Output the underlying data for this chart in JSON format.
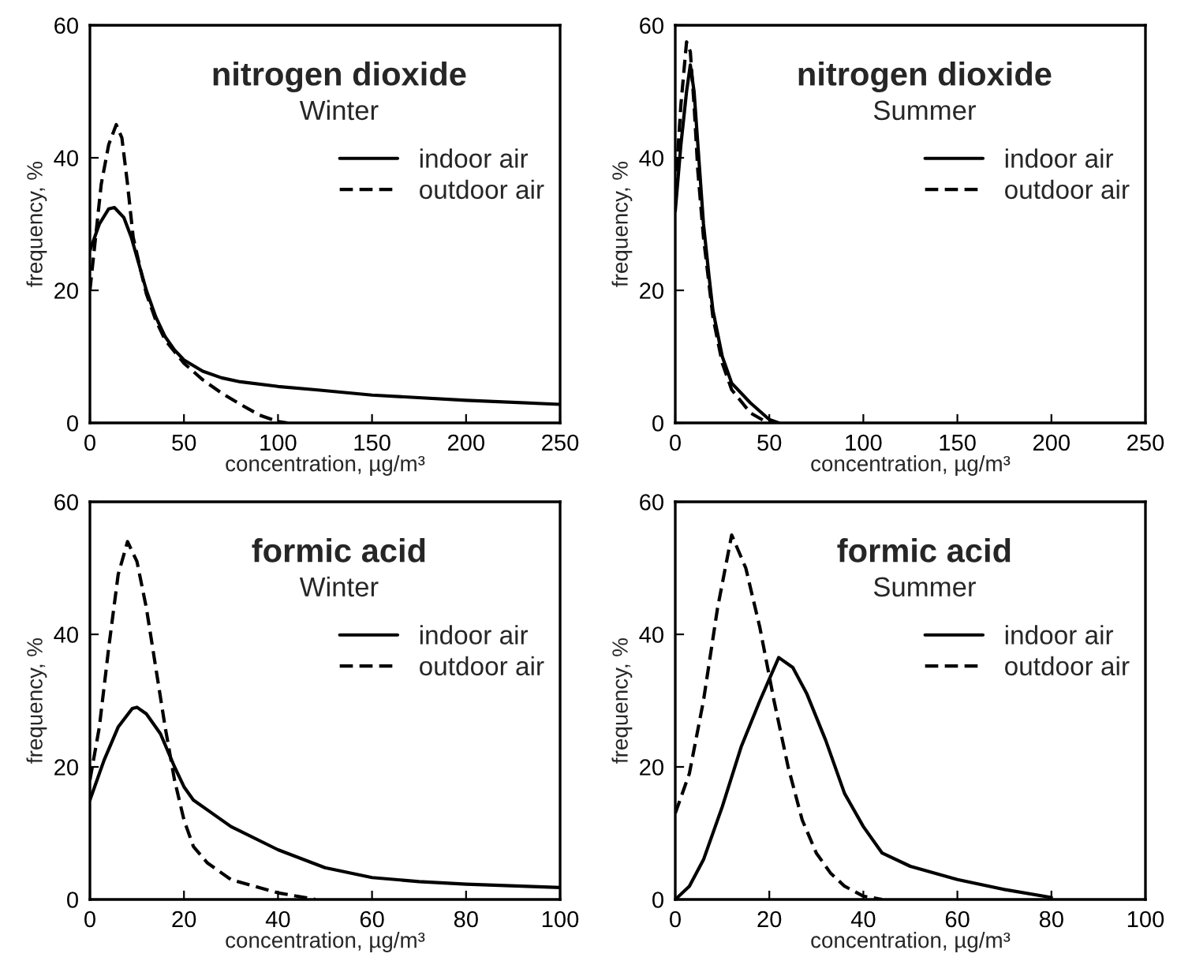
{
  "chart_data": [
    {
      "type": "line",
      "title": "nitrogen dioxide",
      "subtitle": "Winter",
      "xlabel": "concentration, µg/m³",
      "ylabel": "frequency, %",
      "xlim": [
        0,
        250
      ],
      "xticks": [
        0,
        50,
        100,
        150,
        200,
        250
      ],
      "ylim": [
        0,
        60
      ],
      "yticks": [
        0,
        20,
        40,
        60
      ],
      "legend": "right",
      "grid": false,
      "series": [
        {
          "name": "indoor air",
          "color": "#000000",
          "line_style": "solid",
          "x": [
            0,
            5,
            10,
            13,
            18,
            22,
            25,
            30,
            35,
            40,
            45,
            50,
            60,
            70,
            80,
            100,
            120,
            150,
            200,
            250
          ],
          "values": [
            26,
            30,
            32.3,
            32.5,
            31,
            28,
            25,
            20,
            16,
            13,
            11,
            9.5,
            7.8,
            6.8,
            6.2,
            5.5,
            5,
            4.2,
            3.4,
            2.8
          ]
        },
        {
          "name": "outdoor air",
          "color": "#000000",
          "line_style": "dashed",
          "x": [
            0,
            3,
            6,
            10,
            14,
            17,
            20,
            23,
            27,
            30,
            35,
            40,
            50,
            60,
            70,
            80,
            90,
            100,
            105
          ],
          "values": [
            20,
            28,
            36,
            42,
            45,
            43,
            36,
            28,
            23,
            19.5,
            15.5,
            12.5,
            9,
            6.5,
            4.5,
            2.8,
            1.2,
            0.2,
            0
          ]
        }
      ]
    },
    {
      "type": "line",
      "title": "nitrogen dioxide",
      "subtitle": "Summer",
      "xlabel": "concentration, µg/m³",
      "ylabel": "frequency, %",
      "xlim": [
        0,
        250
      ],
      "xticks": [
        0,
        50,
        100,
        150,
        200,
        250
      ],
      "ylim": [
        0,
        60
      ],
      "yticks": [
        0,
        20,
        40,
        60
      ],
      "legend": "right",
      "grid": false,
      "series": [
        {
          "name": "indoor air",
          "color": "#000000",
          "line_style": "solid",
          "x": [
            0,
            3,
            6,
            8,
            10,
            12,
            15,
            18,
            20,
            25,
            30,
            40,
            50,
            55
          ],
          "values": [
            32,
            42,
            50,
            54,
            50,
            42,
            30,
            22,
            17,
            10,
            6,
            3,
            0.5,
            0
          ]
        },
        {
          "name": "outdoor air",
          "color": "#000000",
          "line_style": "dashed",
          "x": [
            0,
            3,
            6,
            8,
            10,
            12,
            15,
            20,
            25,
            30,
            40,
            48,
            52
          ],
          "values": [
            35,
            48,
            57.5,
            56,
            48,
            38,
            28,
            16,
            9,
            5,
            1.5,
            0.2,
            0
          ]
        }
      ]
    },
    {
      "type": "line",
      "title": "formic acid",
      "subtitle": "Winter",
      "xlabel": "concentration, µg/m³",
      "ylabel": "frequency, %",
      "xlim": [
        0,
        100
      ],
      "xticks": [
        0,
        20,
        40,
        60,
        80,
        100
      ],
      "ylim": [
        0,
        60
      ],
      "yticks": [
        0,
        20,
        40,
        60
      ],
      "legend": "right",
      "grid": false,
      "series": [
        {
          "name": "indoor air",
          "color": "#000000",
          "line_style": "solid",
          "x": [
            0,
            3,
            6,
            9,
            10,
            12,
            15,
            18,
            20,
            22,
            30,
            40,
            50,
            60,
            70,
            80,
            100
          ],
          "values": [
            15,
            21,
            26,
            28.8,
            29,
            28,
            25,
            20,
            17,
            15,
            11,
            7.5,
            4.8,
            3.3,
            2.7,
            2.3,
            1.8
          ]
        },
        {
          "name": "outdoor air",
          "color": "#000000",
          "line_style": "dashed",
          "x": [
            0,
            2,
            4,
            6,
            8,
            10,
            12,
            14,
            16,
            18,
            20,
            22,
            25,
            30,
            40,
            48
          ],
          "values": [
            18,
            26,
            38,
            49,
            54,
            51,
            44,
            35,
            26,
            18,
            12,
            8,
            5.5,
            3,
            1,
            0
          ]
        }
      ]
    },
    {
      "type": "line",
      "title": "formic acid",
      "subtitle": "Summer",
      "xlabel": "concentration, µg/m³",
      "ylabel": "frequency, %",
      "xlim": [
        0,
        100
      ],
      "xticks": [
        0,
        20,
        40,
        60,
        80,
        100
      ],
      "ylim": [
        0,
        60
      ],
      "yticks": [
        0,
        20,
        40,
        60
      ],
      "legend": "right",
      "grid": false,
      "series": [
        {
          "name": "indoor air",
          "color": "#000000",
          "line_style": "solid",
          "x": [
            0,
            3,
            6,
            10,
            14,
            18,
            22,
            25,
            28,
            32,
            36,
            40,
            44,
            50,
            60,
            70,
            80
          ],
          "values": [
            0,
            2,
            6,
            14,
            23,
            30,
            36.5,
            35,
            31,
            24,
            16,
            11,
            7,
            5,
            3,
            1.5,
            0.3
          ]
        },
        {
          "name": "outdoor air",
          "color": "#000000",
          "line_style": "dashed",
          "x": [
            0,
            3,
            6,
            9,
            12,
            15,
            18,
            21,
            24,
            27,
            30,
            33,
            36,
            40,
            44
          ],
          "values": [
            13,
            19,
            30,
            44,
            55,
            50,
            41,
            30,
            20,
            12,
            7,
            4,
            2,
            0.5,
            0
          ]
        }
      ]
    }
  ]
}
